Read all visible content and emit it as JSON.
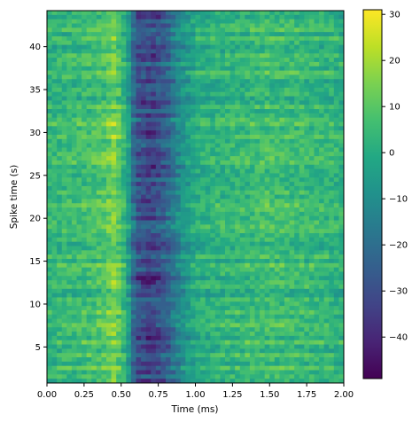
{
  "chart_data": {
    "type": "heatmap",
    "xlabel": "Time (ms)",
    "ylabel": "Spike time (s)",
    "xlim": [
      0.0,
      2.0
    ],
    "ylim": [
      0.8,
      44.2
    ],
    "xticks": [
      "0.00",
      "0.25",
      "0.50",
      "0.75",
      "1.00",
      "1.25",
      "1.50",
      "1.75",
      "2.00"
    ],
    "yticks": [
      "5",
      "10",
      "15",
      "20",
      "25",
      "30",
      "35",
      "40"
    ],
    "colorbar": {
      "min": -49,
      "max": 31,
      "ticks": [
        "30",
        "20",
        "10",
        "0",
        "−10",
        "−20",
        "−30",
        "−40"
      ],
      "colormap": "viridis"
    },
    "grid": false,
    "n_time_bins": 60,
    "n_spikes": 87,
    "profile_time_ms": [
      0.0,
      0.3,
      0.4,
      0.45,
      0.5,
      0.55,
      0.6,
      0.7,
      0.8,
      0.9,
      1.0,
      1.2,
      1.5,
      1.8,
      2.0
    ],
    "profile_amplitude": [
      3,
      6,
      10,
      15,
      8,
      -5,
      -28,
      -33,
      -25,
      -10,
      0,
      3,
      6,
      4,
      2
    ]
  }
}
